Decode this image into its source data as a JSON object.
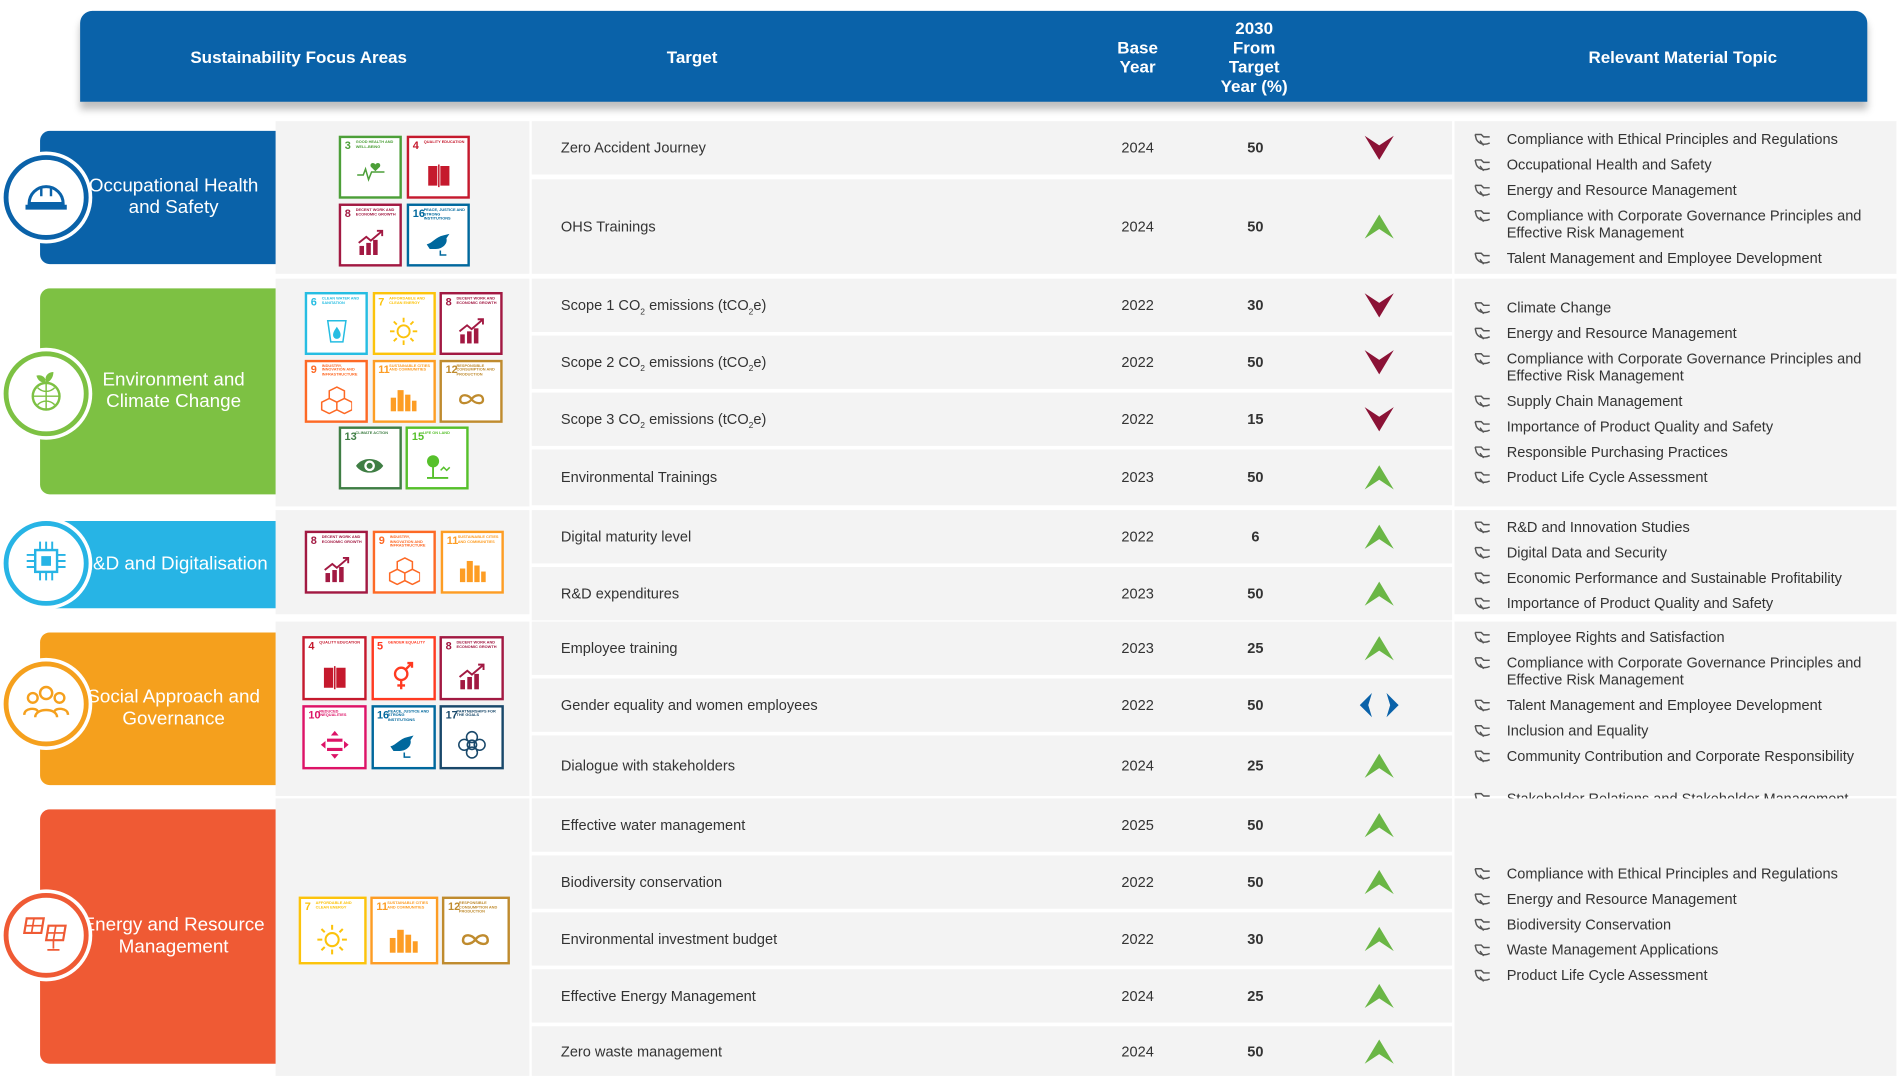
{
  "header": {
    "focus_areas": "Sustainability Focus Areas",
    "target": "Target",
    "base_year": "Base Year",
    "target_pct": "2030 From Target Year (%)",
    "material_topic": "Relevant Material Topic"
  },
  "colors": {
    "header_blue": "#0a62a9",
    "ohs_blue": "#0a62a9",
    "env_green": "#7dc143",
    "rd_cyan": "#27b4e5",
    "social_orange": "#f5a01d",
    "energy_red": "#ef5a34",
    "arrow_down": "#8b1236",
    "arrow_up": "#6ab645",
    "arrow_side": "#0a62a9"
  },
  "sections": [
    {
      "key": "ohs",
      "title": "Occupational Health and Safety",
      "icon": "hard-hat-icon",
      "sdgs": [
        {
          "num": "3",
          "label": "Good health and well-being",
          "color": "#4c9f38",
          "icon": "heartbeat-icon"
        },
        {
          "num": "4",
          "label": "Quality education",
          "color": "#c5192d",
          "icon": "book-icon"
        },
        {
          "num": "8",
          "label": "Decent work and economic growth",
          "color": "#a21942",
          "icon": "growth-chart-icon"
        },
        {
          "num": "16",
          "label": "Peace, justice and strong institutions",
          "color": "#00689d",
          "icon": "dove-icon"
        }
      ],
      "targets": [
        {
          "text": "Zero Accident Journey",
          "base": "2024",
          "pct": "50",
          "trend": "down"
        },
        {
          "text": "OHS Trainings",
          "base": "2024",
          "pct": "50",
          "trend": "up"
        }
      ],
      "topics": [
        "Compliance with Ethical Principles and Regulations",
        "Occupational Health and Safety",
        "Energy and Resource Management",
        "Compliance with Corporate Governance Principles and Effective Risk Management",
        "Talent Management and Employee Development"
      ]
    },
    {
      "key": "env",
      "title": "Environment and Climate Change",
      "icon": "plant-globe-icon",
      "sdgs": [
        {
          "num": "6",
          "label": "Clean water and sanitation",
          "color": "#26bde2",
          "icon": "water-drop-icon"
        },
        {
          "num": "7",
          "label": "Affordable and clean energy",
          "color": "#fcc30b",
          "icon": "sun-icon"
        },
        {
          "num": "8",
          "label": "Decent work and economic growth",
          "color": "#a21942",
          "icon": "growth-chart-icon"
        },
        {
          "num": "9",
          "label": "Industry, innovation and infrastructure",
          "color": "#fd6925",
          "icon": "cubes-icon"
        },
        {
          "num": "11",
          "label": "Sustainable cities and communities",
          "color": "#fd9d24",
          "icon": "city-icon"
        },
        {
          "num": "12",
          "label": "Responsible consumption and production",
          "color": "#bf8b2e",
          "icon": "infinity-icon"
        },
        {
          "num": "13",
          "label": "Climate action",
          "color": "#3f7e44",
          "icon": "eye-globe-icon"
        },
        {
          "num": "15",
          "label": "Life on land",
          "color": "#56c02b",
          "icon": "tree-icon"
        }
      ],
      "targets": [
        {
          "text": "Scope 1 CO",
          "sub1": "2",
          "mid": " emissions (tCO",
          "sub2": "2",
          "end": "e)",
          "base": "2022",
          "pct": "30",
          "trend": "down"
        },
        {
          "text": "Scope 2 CO",
          "sub1": "2",
          "mid": " emissions (tCO",
          "sub2": "2",
          "end": "e)",
          "base": "2022",
          "pct": "50",
          "trend": "down"
        },
        {
          "text": "Scope 3 CO",
          "sub1": "2",
          "mid": " emissions (tCO",
          "sub2": "2",
          "end": "e)",
          "base": "2022",
          "pct": "15",
          "trend": "down"
        },
        {
          "text": "Environmental Trainings",
          "base": "2023",
          "pct": "50",
          "trend": "up"
        }
      ],
      "topics": [
        "Climate Change",
        "Energy and Resource Management",
        "Compliance with Corporate Governance Principles and Effective Risk Management",
        "Supply Chain Management",
        "Importance of Product Quality and Safety",
        "Responsible Purchasing Practices",
        "Product Life Cycle Assessment"
      ]
    },
    {
      "key": "rd",
      "title": "R&D and Digitalisation",
      "icon": "chip-icon",
      "sdgs": [
        {
          "num": "8",
          "label": "Decent work and economic growth",
          "color": "#a21942",
          "icon": "growth-chart-icon"
        },
        {
          "num": "9",
          "label": "Industry, innovation and infrastructure",
          "color": "#fd6925",
          "icon": "cubes-icon"
        },
        {
          "num": "11",
          "label": "Sustainable cities and communities",
          "color": "#fd9d24",
          "icon": "city-icon"
        }
      ],
      "targets": [
        {
          "text": "Digital maturity level",
          "base": "2022",
          "pct": "6",
          "trend": "up"
        },
        {
          "text": "R&D expenditures",
          "base": "2023",
          "pct": "50",
          "trend": "up"
        }
      ],
      "topics": [
        "R&D and Innovation Studies",
        "Digital Data and Security",
        "Economic Performance and Sustainable Profitability",
        "Importance of Product Quality and Safety"
      ]
    },
    {
      "key": "social",
      "title": "Social Approach and Governance",
      "icon": "people-group-icon",
      "sdgs": [
        {
          "num": "4",
          "label": "Quality education",
          "color": "#c5192d",
          "icon": "book-icon"
        },
        {
          "num": "5",
          "label": "Gender equality",
          "color": "#ff3a21",
          "icon": "gender-icon"
        },
        {
          "num": "8",
          "label": "Decent work and economic growth",
          "color": "#a21942",
          "icon": "growth-chart-icon"
        },
        {
          "num": "10",
          "label": "Reduced inequalities",
          "color": "#dd1367",
          "icon": "equal-icon"
        },
        {
          "num": "16",
          "label": "Peace, justice and strong institutions",
          "color": "#00689d",
          "icon": "dove-icon"
        },
        {
          "num": "17",
          "label": "Partnerships for the goals",
          "color": "#19486a",
          "icon": "flower-icon"
        }
      ],
      "targets": [
        {
          "text": "Employee training",
          "base": "2023",
          "pct": "25",
          "trend": "up"
        },
        {
          "text": "Gender equality and women employees",
          "base": "2022",
          "pct": "50",
          "trend": "side"
        },
        {
          "text": "Dialogue with stakeholders",
          "base": "2024",
          "pct": "25",
          "trend": "up"
        }
      ],
      "topics": [
        "Employee Rights and Satisfaction",
        "Compliance with Corporate Governance Principles and Effective Risk Management",
        "Talent Management and Employee Development",
        "Inclusion and Equality",
        "Community Contribution and Corporate Responsibility",
        "Stakeholder Relations and Stakeholder Management"
      ]
    },
    {
      "key": "energy",
      "title": "Energy and Resource Management",
      "icon": "solar-panel-icon",
      "sdgs": [
        {
          "num": "7",
          "label": "Affordable and clean energy",
          "color": "#fcc30b",
          "icon": "sun-icon"
        },
        {
          "num": "11",
          "label": "Sustainable cities and communities",
          "color": "#fd9d24",
          "icon": "city-icon"
        },
        {
          "num": "12",
          "label": "Responsible consumption and production",
          "color": "#bf8b2e",
          "icon": "infinity-icon"
        }
      ],
      "targets": [
        {
          "text": "Effective water management",
          "base": "2025",
          "pct": "50",
          "trend": "up"
        },
        {
          "text": "Biodiversity conservation",
          "base": "2022",
          "pct": "50",
          "trend": "up"
        },
        {
          "text": "Environmental investment budget",
          "base": "2022",
          "pct": "30",
          "trend": "up"
        },
        {
          "text": "Effective Energy Management",
          "base": "2024",
          "pct": "25",
          "trend": "up"
        },
        {
          "text": "Zero waste management",
          "base": "2024",
          "pct": "50",
          "trend": "up"
        }
      ],
      "topics": [
        "Compliance with Ethical Principles and Regulations",
        "Energy and Resource Management",
        "Biodiversity Conservation",
        "Waste Management Applications",
        "Product Life Cycle Assessment"
      ]
    }
  ]
}
